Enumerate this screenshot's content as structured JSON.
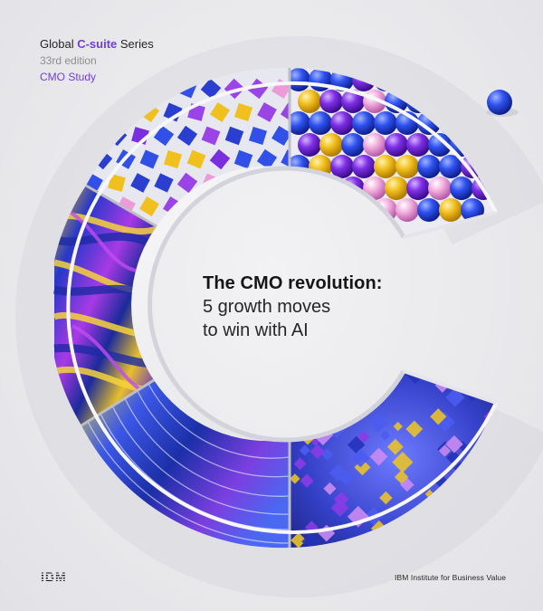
{
  "series": {
    "prefix": "Global ",
    "accent": "C-suite",
    "suffix": " Series",
    "edition": "33rd edition",
    "study": "CMO Study"
  },
  "headline": {
    "title": "The CMO revolution:",
    "line2": "5 growth moves",
    "line3": "to win with AI"
  },
  "footer": {
    "logo": "IBM",
    "institute": "IBM Institute for Business Value"
  },
  "colors": {
    "accent_purple": "#6f3fd6",
    "ball_blue": "#1f3fe0",
    "ball_yellow": "#f3c21c",
    "ball_purple": "#7a2ee0",
    "ball_pink": "#f1a6d8"
  }
}
